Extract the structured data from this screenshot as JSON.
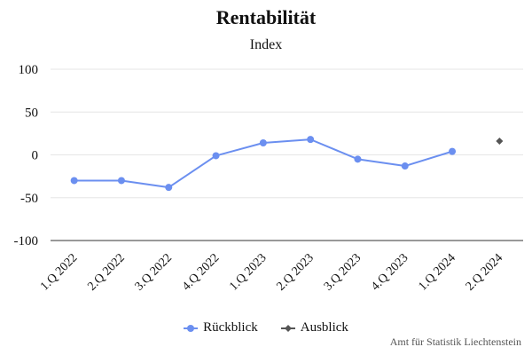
{
  "chart_data": {
    "type": "line",
    "title": "Rentabilität",
    "subtitle": "Index",
    "categories": [
      "1.Q 2022",
      "2.Q 2022",
      "3.Q 2022",
      "4.Q 2022",
      "1.Q 2023",
      "2.Q 2023",
      "3.Q 2023",
      "4.Q 2023",
      "1.Q 2024",
      "2.Q 2024"
    ],
    "y_ticks": [
      100,
      50,
      0,
      -50,
      -100
    ],
    "ylim": [
      -100,
      100
    ],
    "grid": true,
    "legend_position": "bottom",
    "series": [
      {
        "name": "Rückblick",
        "color": "#6b8ff0",
        "marker": "circle",
        "values": [
          -30,
          -30,
          -38,
          -1,
          14,
          18,
          -5,
          -13,
          4,
          null
        ]
      },
      {
        "name": "Ausblick",
        "color": "#555555",
        "marker": "diamond",
        "values": [
          null,
          null,
          null,
          null,
          null,
          null,
          null,
          null,
          null,
          16
        ]
      }
    ]
  },
  "credit": "Amt für Statistik Liechtenstein"
}
